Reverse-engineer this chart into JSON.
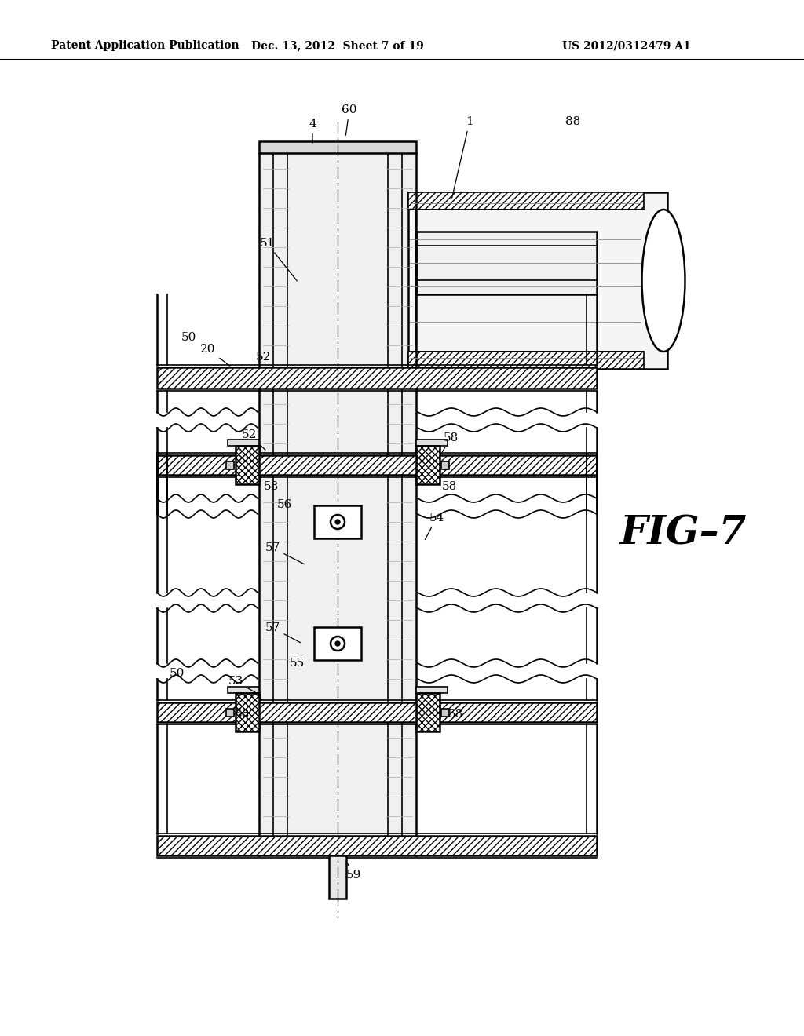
{
  "title_left": "Patent Application Publication",
  "title_center": "Dec. 13, 2012  Sheet 7 of 19",
  "title_right": "US 2012/0312479 A1",
  "fig_label": "FIG–7",
  "bg_color": "#ffffff",
  "lc": "#000000"
}
